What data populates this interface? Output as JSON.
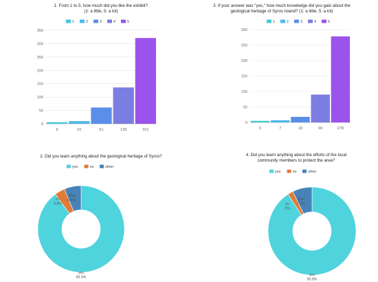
{
  "chart_data": [
    {
      "type": "bar",
      "title": "1. From 1 to 5, how much did you like the exhibit?",
      "subtitle": "(1: a little, 5: a lot)",
      "categories": [
        "6",
        "10",
        "61",
        "136",
        "321"
      ],
      "series": [
        {
          "name": "1",
          "values": [
            6,
            0,
            0,
            0,
            0
          ]
        },
        {
          "name": "2",
          "values": [
            0,
            10,
            0,
            0,
            0
          ]
        },
        {
          "name": "3",
          "values": [
            0,
            0,
            61,
            0,
            0
          ]
        },
        {
          "name": "4",
          "values": [
            0,
            0,
            0,
            136,
            0
          ]
        },
        {
          "name": "5",
          "values": [
            0,
            0,
            0,
            0,
            321
          ]
        }
      ],
      "values": [
        6,
        10,
        61,
        136,
        321
      ],
      "ylim": [
        0,
        350
      ],
      "yticks": [
        0,
        50,
        100,
        150,
        200,
        250,
        300,
        350
      ],
      "grid": true,
      "legend": "top",
      "colors": [
        "#3ec9d6",
        "#4fb8ec",
        "#5b8ee8",
        "#7b7de0",
        "#9a54ec"
      ]
    },
    {
      "type": "bar",
      "title": "3. If your answer was \"yes,\" how much knowledge did you gain about the",
      "subtitle": "geological heritage of Syros Island? (1: a little, 5: a lot)",
      "categories": [
        "5",
        "7",
        "18",
        "90",
        "278"
      ],
      "series": [
        {
          "name": "1",
          "values": [
            5,
            0,
            0,
            0,
            0
          ]
        },
        {
          "name": "2",
          "values": [
            0,
            7,
            0,
            0,
            0
          ]
        },
        {
          "name": "3",
          "values": [
            0,
            0,
            18,
            0,
            0
          ]
        },
        {
          "name": "4",
          "values": [
            0,
            0,
            0,
            90,
            0
          ]
        },
        {
          "name": "5",
          "values": [
            0,
            0,
            0,
            0,
            278
          ]
        }
      ],
      "values": [
        5,
        7,
        18,
        90,
        278
      ],
      "ylim": [
        0,
        300
      ],
      "yticks": [
        0,
        50,
        100,
        150,
        200,
        250,
        300
      ],
      "grid": true,
      "legend": "top",
      "colors": [
        "#3ec9d6",
        "#4fb8ec",
        "#5b8ee8",
        "#7b7de0",
        "#9a54ec"
      ]
    },
    {
      "type": "pie",
      "donut": true,
      "title": "2. Did you learn anything about the geological heritage of Syros?",
      "subtitle": "",
      "legend": "top",
      "slices": [
        {
          "name": "yes",
          "value": 89.9,
          "label": "89.9%",
          "color": "#4fd3dc"
        },
        {
          "name": "no",
          "value": 3.9,
          "label": "3.9%",
          "color": "#e07b39"
        },
        {
          "name": "other",
          "value": 6.3,
          "label": "6.3%",
          "color": "#4583b8"
        }
      ]
    },
    {
      "type": "pie",
      "donut": true,
      "title": "4. Did you learn anything about the efforts of the local",
      "subtitle": "community members to protect the area?",
      "legend": "top",
      "slices": [
        {
          "name": "yes",
          "value": 90.8,
          "label": "90.8%",
          "color": "#4fd3dc"
        },
        {
          "name": "no",
          "value": 2,
          "label": "2%",
          "color": "#e07b39"
        },
        {
          "name": "other",
          "value": 7.2,
          "label": "7.2%",
          "color": "#4583b8"
        }
      ]
    }
  ]
}
